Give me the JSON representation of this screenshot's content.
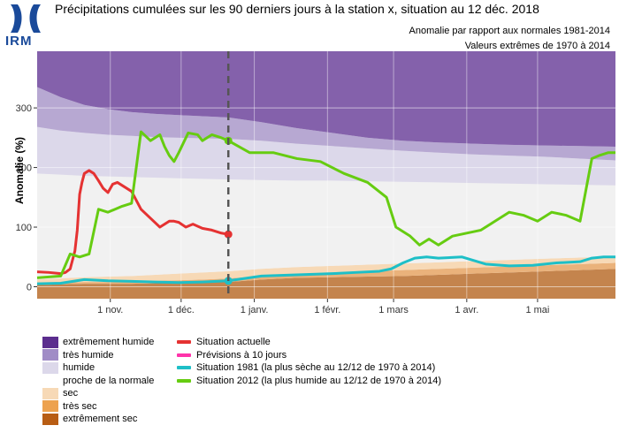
{
  "header": {
    "logo": "IRM",
    "title": "Précipitations cumulées sur les 90 derniers jours à la station x, situation au 12 déc. 2018",
    "subtitle_1": "Anomalie par rapport aux normales 1981-2014",
    "subtitle_2": "Valeurs extrêmes de 1970 à 2014"
  },
  "colors": {
    "extremely_wet": "#8461ab",
    "very_wet": "#b7a8d2",
    "wet": "#dcd8ea",
    "near_normal": "#f1f1f1",
    "dry": "#f7d9b6",
    "very_dry": "#eab27b",
    "extremely_dry": "#c4844d",
    "actual": "#e53232",
    "forecast": "#ff33aa",
    "y1981": "#1ebfc7",
    "y2012": "#66cc11",
    "today_line": "#555555"
  },
  "legend": {
    "bands": [
      {
        "label": "extrêmement humide",
        "color": "#5b2d8e"
      },
      {
        "label": "très humide",
        "color": "#a08cc6"
      },
      {
        "label": "humide",
        "color": "#dcd8ea"
      },
      {
        "label": "proche de la normale",
        "color": "#ffffff"
      },
      {
        "label": "sec",
        "color": "#f7d9b6"
      },
      {
        "label": "très sec",
        "color": "#eda24f"
      },
      {
        "label": "extrêmement sec",
        "color": "#b85d14"
      }
    ],
    "lines": [
      {
        "label": "Situation actuelle",
        "color": "#e53232"
      },
      {
        "label": "Prévisions à 10 jours",
        "color": "#ff33aa"
      },
      {
        "label": "Situation 1981 (la plus sèche au 12/12 de 1970 à 2014)",
        "color": "#1ebfc7"
      },
      {
        "label": "Situation 2012 (la plus humide au 12/12 de 1970 à 2014)",
        "color": "#66cc11"
      }
    ]
  },
  "chart_data": {
    "type": "area",
    "ylabel": "Anomalie (%)",
    "xlim": [
      0,
      245
    ],
    "ylim": [
      -20,
      395
    ],
    "yticks": [
      0,
      100,
      200,
      300
    ],
    "xticks": [
      {
        "x": 31,
        "label": "1 nov."
      },
      {
        "x": 61,
        "label": "1 déc."
      },
      {
        "x": 92,
        "label": "1 janv."
      },
      {
        "x": 123,
        "label": "1 févr."
      },
      {
        "x": 151,
        "label": "1 mars"
      },
      {
        "x": 182,
        "label": "1 avr."
      },
      {
        "x": 212,
        "label": "1 mai"
      }
    ],
    "today_x": 81,
    "bands": {
      "x": [
        0,
        10,
        20,
        30,
        40,
        50,
        60,
        70,
        81,
        95,
        110,
        125,
        140,
        155,
        170,
        185,
        200,
        215,
        230,
        245
      ],
      "very_dry_top": [
        3,
        4,
        5,
        5,
        5,
        6,
        6,
        7,
        8,
        12,
        15,
        16,
        17,
        18,
        20,
        22,
        24,
        26,
        28,
        30
      ],
      "dry_top": [
        6,
        7,
        8,
        8,
        9,
        10,
        11,
        12,
        14,
        18,
        22,
        24,
        26,
        28,
        30,
        32,
        34,
        36,
        38,
        40
      ],
      "normal_low_top": [
        12,
        14,
        16,
        17,
        18,
        20,
        22,
        24,
        26,
        30,
        33,
        35,
        37,
        39,
        41,
        43,
        45,
        47,
        49,
        50
      ],
      "normal_top": [
        190,
        188,
        186,
        185,
        184,
        183,
        182,
        181,
        180,
        179,
        178,
        178,
        177,
        176,
        175,
        174,
        173,
        172,
        171,
        170
      ],
      "wet_top": [
        268,
        262,
        258,
        255,
        253,
        251,
        250,
        249,
        248,
        245,
        240,
        236,
        232,
        228,
        225,
        222,
        220,
        218,
        215,
        212
      ],
      "very_wet_top": [
        335,
        318,
        305,
        298,
        293,
        290,
        288,
        286,
        284,
        276,
        266,
        258,
        250,
        245,
        242,
        240,
        238,
        237,
        236,
        235
      ],
      "top": [
        395,
        395,
        395,
        395,
        395,
        395,
        395,
        395,
        395,
        395,
        395,
        395,
        395,
        395,
        395,
        395,
        395,
        395,
        395,
        395
      ]
    },
    "series": [
      {
        "name": "Situation actuelle",
        "color": "#e53232",
        "x": [
          0,
          5,
          10,
          12,
          14,
          16,
          17,
          18,
          19,
          20,
          22,
          24,
          26,
          28,
          30,
          32,
          34,
          36,
          38,
          40,
          44,
          48,
          52,
          56,
          58,
          60,
          63,
          66,
          70,
          74,
          78,
          81
        ],
        "y": [
          25,
          24,
          22,
          24,
          30,
          60,
          95,
          155,
          175,
          190,
          195,
          190,
          178,
          165,
          158,
          172,
          175,
          170,
          165,
          160,
          130,
          115,
          100,
          110,
          110,
          108,
          100,
          105,
          98,
          95,
          90,
          88
        ]
      },
      {
        "name": "Situation 1981",
        "color": "#1ebfc7",
        "x": [
          0,
          10,
          20,
          30,
          40,
          50,
          60,
          70,
          81,
          95,
          110,
          125,
          135,
          145,
          150,
          155,
          160,
          165,
          170,
          180,
          190,
          200,
          210,
          220,
          230,
          235,
          240,
          245
        ],
        "y": [
          5,
          6,
          12,
          10,
          9,
          8,
          7,
          8,
          10,
          18,
          20,
          22,
          24,
          26,
          30,
          40,
          48,
          50,
          48,
          50,
          38,
          35,
          36,
          40,
          42,
          48,
          50,
          50
        ]
      },
      {
        "name": "Situation 2012",
        "color": "#66cc11",
        "x": [
          0,
          10,
          14,
          18,
          22,
          26,
          30,
          36,
          40,
          44,
          48,
          52,
          54,
          56,
          58,
          60,
          64,
          68,
          70,
          74,
          78,
          81,
          90,
          100,
          110,
          120,
          130,
          140,
          148,
          152,
          158,
          162,
          166,
          170,
          176,
          182,
          188,
          194,
          200,
          206,
          212,
          218,
          224,
          230,
          235,
          238,
          242,
          245
        ],
        "y": [
          15,
          18,
          55,
          50,
          55,
          130,
          125,
          135,
          140,
          260,
          245,
          255,
          235,
          220,
          210,
          225,
          258,
          255,
          245,
          255,
          250,
          245,
          225,
          225,
          215,
          210,
          190,
          175,
          150,
          100,
          85,
          70,
          80,
          70,
          85,
          90,
          95,
          110,
          125,
          120,
          110,
          125,
          120,
          110,
          215,
          220,
          225,
          225
        ]
      }
    ]
  }
}
